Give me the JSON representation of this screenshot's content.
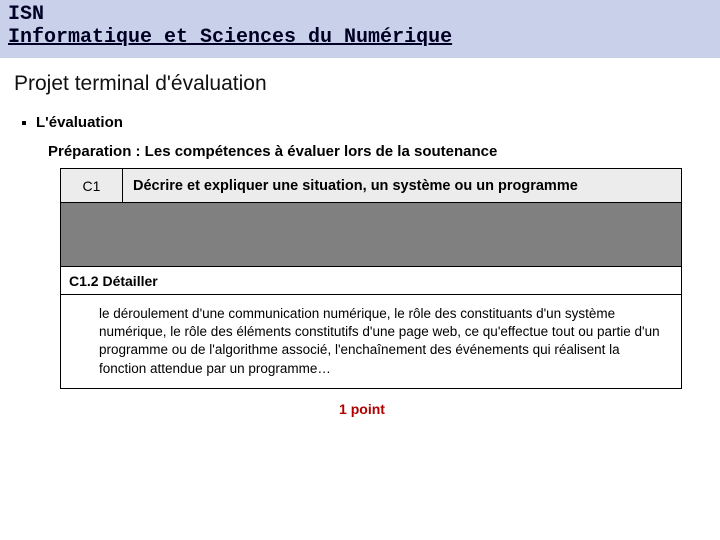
{
  "header": {
    "acronym": "ISN",
    "full_name": "Informatique et Sciences du Numérique"
  },
  "section_title": "Projet terminal d'évaluation",
  "bullet": {
    "label": "L'évaluation"
  },
  "sub_line": "Préparation : Les compétences à évaluer  lors de la soutenance",
  "competence": {
    "code": "C1",
    "description": "Décrire et expliquer une situation, un système ou un programme",
    "sub_code": "C1.2 Détailler",
    "detail_text": "le déroulement d'une communication numérique, le rôle des constituants d'un système numérique, le rôle des éléments constitutifs d'une page web, ce qu'effectue tout ou partie d'un programme ou de l'algorithme associé, l'enchaînement des événements qui réalisent la fonction attendue par un programme…"
  },
  "points_label": "1 point",
  "colors": {
    "header_band": "#c8d1e9",
    "header_text": "#000024",
    "row_head_bg": "#ececec",
    "spacer_bg": "#808080",
    "points_color": "#b00000",
    "border": "#000000",
    "page_bg": "#ffffff"
  }
}
